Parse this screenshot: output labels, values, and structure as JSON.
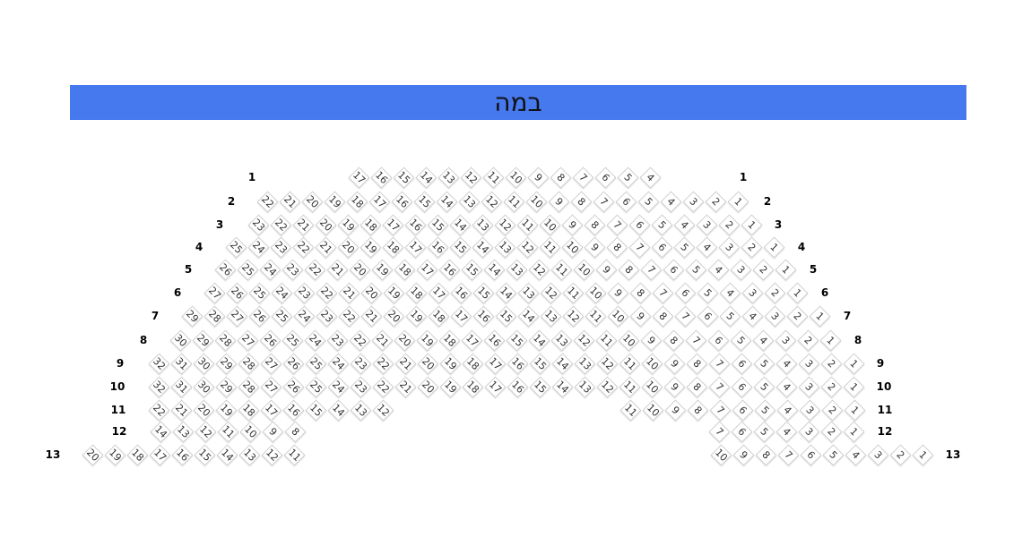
{
  "stage": {
    "label": "במה",
    "color": "#4678ee"
  },
  "rows": [
    {
      "label": "1",
      "blocks": [
        [
          17,
          4
        ]
      ]
    },
    {
      "label": "2",
      "blocks": [
        [
          22,
          1
        ]
      ]
    },
    {
      "label": "3",
      "blocks": [
        [
          23,
          1
        ]
      ]
    },
    {
      "label": "4",
      "blocks": [
        [
          25,
          1
        ]
      ]
    },
    {
      "label": "5",
      "blocks": [
        [
          26,
          1
        ]
      ]
    },
    {
      "label": "6",
      "blocks": [
        [
          27,
          1
        ]
      ]
    },
    {
      "label": "7",
      "blocks": [
        [
          29,
          1
        ]
      ]
    },
    {
      "label": "8",
      "blocks": [
        [
          30,
          1
        ]
      ]
    },
    {
      "label": "9",
      "blocks": [
        [
          32,
          1
        ]
      ]
    },
    {
      "label": "10",
      "blocks": [
        [
          32,
          1
        ]
      ]
    },
    {
      "label": "11",
      "blocks": [
        [
          22,
          12
        ],
        [
          11,
          1
        ]
      ]
    },
    {
      "label": "12",
      "blocks": [
        [
          14,
          8
        ],
        [
          7,
          1
        ]
      ]
    },
    {
      "label": "13",
      "blocks": [
        [
          20,
          11
        ],
        [
          10,
          1
        ]
      ]
    }
  ]
}
